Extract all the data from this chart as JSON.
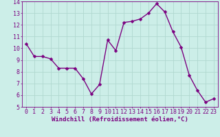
{
  "x": [
    0,
    1,
    2,
    3,
    4,
    5,
    6,
    7,
    8,
    9,
    10,
    11,
    12,
    13,
    14,
    15,
    16,
    17,
    18,
    19,
    20,
    21,
    22,
    23
  ],
  "y": [
    10.4,
    9.3,
    9.3,
    9.1,
    8.3,
    8.3,
    8.3,
    7.4,
    6.1,
    6.9,
    10.7,
    9.8,
    12.2,
    12.3,
    12.5,
    13.0,
    13.8,
    13.1,
    11.4,
    10.1,
    7.7,
    6.4,
    5.4,
    5.7
  ],
  "line_color": "#7b0080",
  "marker": "D",
  "marker_size": 2.5,
  "bg_color": "#cceee8",
  "grid_color": "#b0d8d0",
  "xlabel": "Windchill (Refroidissement éolien,°C)",
  "ylabel": "",
  "xlim": [
    -0.5,
    23.5
  ],
  "ylim": [
    5,
    14
  ],
  "yticks": [
    5,
    6,
    7,
    8,
    9,
    10,
    11,
    12,
    13,
    14
  ],
  "xticks": [
    0,
    1,
    2,
    3,
    4,
    5,
    6,
    7,
    8,
    9,
    10,
    11,
    12,
    13,
    14,
    15,
    16,
    17,
    18,
    19,
    20,
    21,
    22,
    23
  ],
  "tick_color": "#7b0080",
  "label_color": "#7b0080",
  "axis_color": "#7b0080",
  "linewidth": 1.0,
  "tick_fontsize": 6.0,
  "xlabel_fontsize": 6.5
}
